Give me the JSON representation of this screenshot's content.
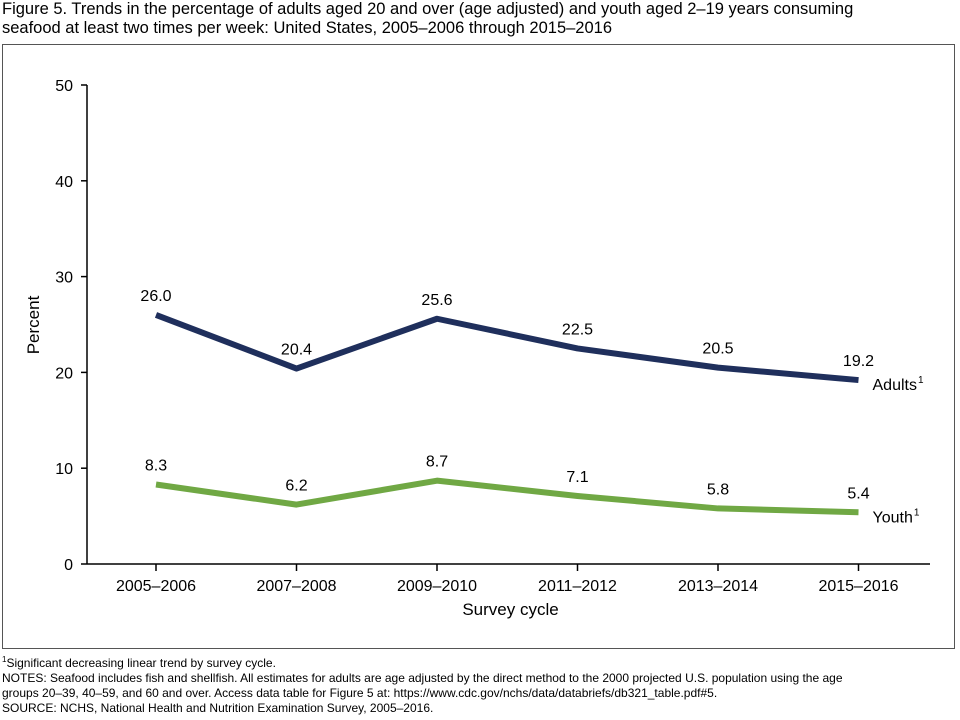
{
  "figure": {
    "title_line1": "Figure 5. Trends in the percentage of adults aged 20 and over (age adjusted) and youth aged 2–19 years consuming",
    "title_line2": "seafood at least two times per week: United States, 2005–2006 through 2015–2016"
  },
  "notes": {
    "footnote_mark": "1",
    "footnote_text": "Significant decreasing linear trend by survey cycle.",
    "line1": "NOTES: Seafood includes fish and shellfish. All estimates for adults are age adjusted by the direct method to the 2000 projected U.S. population using the age",
    "line2": "groups 20–39, 40–59, and 60 and over. Access data table for Figure 5 at: https://www.cdc.gov/nchs/data/databriefs/db321_table.pdf#5.",
    "source": "SOURCE: NCHS, National Health and Nutrition Examination Survey, 2005–2016."
  },
  "chart_data": {
    "type": "line",
    "title": "Figure 5. Trends in the percentage of adults aged 20 and over (age adjusted) and youth aged 2–19 years consuming seafood at least two times per week: United States, 2005–2006 through 2015–2016",
    "xlabel": "Survey cycle",
    "ylabel": "Percent",
    "ylim": [
      0,
      50
    ],
    "yticks": [
      "0",
      "10",
      "20",
      "30",
      "40",
      "50"
    ],
    "categories": [
      "2005–2006",
      "2007–2008",
      "2009–2010",
      "2011–2012",
      "2013–2014",
      "2015–2016"
    ],
    "grid": false,
    "legend": "none",
    "series": [
      {
        "name": "Adults",
        "name_sup": "1",
        "color": "#1f2f5c",
        "values": [
          26.0,
          20.4,
          25.6,
          22.5,
          20.5,
          19.2
        ],
        "labels": [
          "26.0",
          "20.4",
          "25.6",
          "22.5",
          "20.5",
          "19.2"
        ]
      },
      {
        "name": "Youth",
        "name_sup": "1",
        "color": "#70a844",
        "values": [
          8.3,
          6.2,
          8.7,
          7.1,
          5.8,
          5.4
        ],
        "labels": [
          "8.3",
          "6.2",
          "8.7",
          "7.1",
          "5.8",
          "5.4"
        ]
      }
    ]
  }
}
